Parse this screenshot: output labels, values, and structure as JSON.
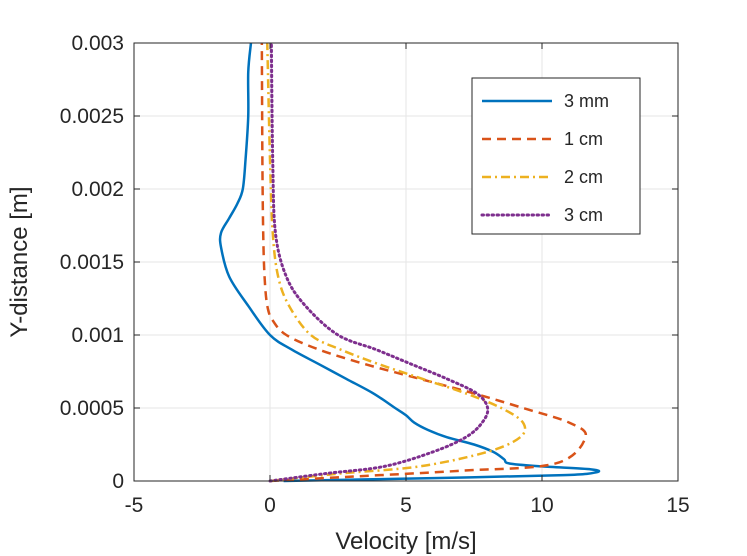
{
  "chart_data": {
    "type": "line",
    "title": "",
    "xlabel": "Velocity [m/s]",
    "ylabel": "Y-distance [m]",
    "xlim": [
      -5,
      15
    ],
    "ylim": [
      0,
      0.003
    ],
    "xticks": [
      -5,
      0,
      5,
      10,
      15
    ],
    "xtick_labels": [
      "-5",
      "0",
      "5",
      "10",
      "15"
    ],
    "yticks": [
      0,
      0.0005,
      0.001,
      0.0015,
      0.002,
      0.0025,
      0.003
    ],
    "ytick_labels": [
      "0",
      "0.0005",
      "0.001",
      "0.0015",
      "0.002",
      "0.0025",
      "0.003"
    ],
    "grid": true,
    "legend_position": "top-right",
    "series": [
      {
        "name": "3 mm",
        "color": "#0072BD",
        "dash": "solid",
        "x": [
          0.5,
          6.0,
          10.8,
          12.0,
          11.8,
          10.0,
          8.8,
          8.6,
          8.2,
          7.5,
          6.5,
          5.8,
          5.3,
          5.0,
          4.6,
          3.8,
          2.8,
          1.8,
          0.8,
          0.0,
          -0.8,
          -1.5,
          -1.8,
          -1.8,
          -1.5,
          -1.2,
          -1.0,
          -0.9,
          -0.8,
          -0.8,
          -0.7
        ],
        "y": [
          0.0,
          2e-05,
          4e-05,
          6e-05,
          8e-05,
          0.0001,
          0.00012,
          0.00015,
          0.0002,
          0.00025,
          0.0003,
          0.00035,
          0.0004,
          0.00045,
          0.0005,
          0.0006,
          0.0007,
          0.0008,
          0.0009,
          0.001,
          0.0012,
          0.0014,
          0.0016,
          0.0017,
          0.0018,
          0.0019,
          0.002,
          0.0022,
          0.0025,
          0.0028,
          0.003
        ]
      },
      {
        "name": "1 cm",
        "color": "#D95319",
        "dash": "dashed",
        "x": [
          0.0,
          3.0,
          7.0,
          10.5,
          11.6,
          11.0,
          9.3,
          7.5,
          5.5,
          3.5,
          1.8,
          0.6,
          0.1,
          -0.1,
          -0.2,
          -0.25,
          -0.28,
          -0.3
        ],
        "y": [
          0.0,
          3e-05,
          7e-05,
          0.00012,
          0.0003,
          0.0004,
          0.0005,
          0.0006,
          0.0007,
          0.0008,
          0.0009,
          0.001,
          0.0011,
          0.0012,
          0.0014,
          0.0017,
          0.0022,
          0.003
        ]
      },
      {
        "name": "2 cm",
        "color": "#EDB120",
        "dash": "dashdot",
        "x": [
          0.0,
          2.5,
          5.5,
          8.0,
          9.2,
          9.3,
          8.5,
          7.2,
          5.6,
          4.0,
          2.6,
          1.5,
          0.7,
          0.3,
          0.1,
          0.0,
          -0.1
        ],
        "y": [
          0.0,
          5e-05,
          0.0001,
          0.0002,
          0.0003,
          0.0004,
          0.0005,
          0.0006,
          0.0007,
          0.0008,
          0.0009,
          0.001,
          0.0012,
          0.0014,
          0.0017,
          0.0022,
          0.003
        ]
      },
      {
        "name": "3 cm",
        "color": "#7E2F8E",
        "dash": "dotted",
        "x": [
          0.0,
          2.0,
          4.2,
          6.0,
          7.2,
          7.8,
          8.0,
          7.6,
          6.5,
          5.2,
          3.9,
          2.5,
          1.3,
          0.6,
          0.2,
          0.1,
          0.05
        ],
        "y": [
          0.0,
          5e-05,
          0.0001,
          0.0002,
          0.0003,
          0.0004,
          0.0005,
          0.0006,
          0.0007,
          0.0008,
          0.0009,
          0.001,
          0.0012,
          0.0014,
          0.0017,
          0.0022,
          0.003
        ]
      }
    ]
  }
}
